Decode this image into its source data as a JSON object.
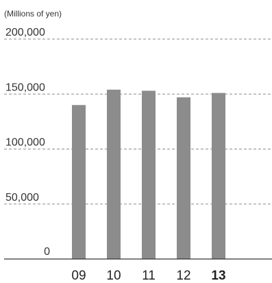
{
  "unit_label": "(Millions of yen)",
  "chart_data": {
    "type": "bar",
    "title": "",
    "unit": "(Millions of yen)",
    "categories": [
      "09",
      "10",
      "11",
      "12",
      "13"
    ],
    "highlight_category": "13",
    "values": [
      140000,
      154000,
      153000,
      147000,
      151000
    ],
    "ylim": [
      0,
      200000
    ],
    "y_ticks": [
      {
        "value": 0,
        "label": "0"
      },
      {
        "value": 50000,
        "label": "50,000"
      },
      {
        "value": 100000,
        "label": "100,000"
      },
      {
        "value": 150000,
        "label": "150,000"
      },
      {
        "value": 200000,
        "label": "200,000"
      }
    ],
    "grid": true,
    "bar_color": "#8c8c8c"
  }
}
